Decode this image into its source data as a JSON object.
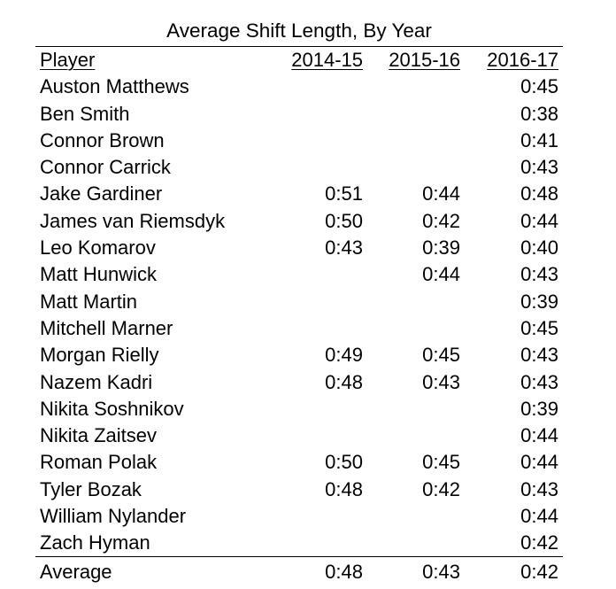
{
  "chart_data": {
    "type": "table",
    "title": "Average Shift Length, By Year",
    "columns": [
      "Player",
      "2014-15",
      "2015-16",
      "2016-17"
    ],
    "rows": [
      [
        "Auston Matthews",
        "",
        "",
        "0:45"
      ],
      [
        "Ben Smith",
        "",
        "",
        "0:38"
      ],
      [
        "Connor Brown",
        "",
        "",
        "0:41"
      ],
      [
        "Connor Carrick",
        "",
        "",
        "0:43"
      ],
      [
        "Jake Gardiner",
        "0:51",
        "0:44",
        "0:48"
      ],
      [
        "James van Riemsdyk",
        "0:50",
        "0:42",
        "0:44"
      ],
      [
        "Leo Komarov",
        "0:43",
        "0:39",
        "0:40"
      ],
      [
        "Matt Hunwick",
        "",
        "0:44",
        "0:43"
      ],
      [
        "Matt Martin",
        "",
        "",
        "0:39"
      ],
      [
        "Mitchell Marner",
        "",
        "",
        "0:45"
      ],
      [
        "Morgan Rielly",
        "0:49",
        "0:45",
        "0:43"
      ],
      [
        "Nazem Kadri",
        "0:48",
        "0:43",
        "0:43"
      ],
      [
        "Nikita Soshnikov",
        "",
        "",
        "0:39"
      ],
      [
        "Nikita Zaitsev",
        "",
        "",
        "0:44"
      ],
      [
        "Roman Polak",
        "0:50",
        "0:45",
        "0:44"
      ],
      [
        "Tyler Bozak",
        "0:48",
        "0:42",
        "0:43"
      ],
      [
        "William Nylander",
        "",
        "",
        "0:44"
      ],
      [
        "Zach Hyman",
        "",
        "",
        "0:42"
      ]
    ],
    "summary_row": [
      "Average",
      "0:48",
      "0:43",
      "0:42"
    ]
  }
}
